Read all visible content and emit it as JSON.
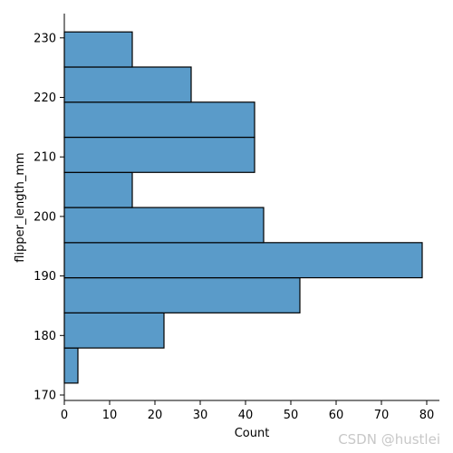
{
  "chart_data": {
    "type": "bar",
    "orientation": "horizontal",
    "xlabel": "Count",
    "ylabel": "flipper_length_mm",
    "xlim": [
      0,
      83
    ],
    "ylim": [
      169.2,
      233.4
    ],
    "x_ticks": [
      0,
      10,
      20,
      30,
      40,
      50,
      60,
      70,
      80
    ],
    "y_ticks": [
      170,
      180,
      190,
      200,
      210,
      220,
      230
    ],
    "bins": [
      {
        "lo": 172.0,
        "hi": 177.9,
        "count": 3
      },
      {
        "lo": 177.9,
        "hi": 183.8,
        "count": 22
      },
      {
        "lo": 183.8,
        "hi": 189.7,
        "count": 52
      },
      {
        "lo": 189.7,
        "hi": 195.6,
        "count": 79
      },
      {
        "lo": 195.6,
        "hi": 201.5,
        "count": 44
      },
      {
        "lo": 201.5,
        "hi": 207.4,
        "count": 15
      },
      {
        "lo": 207.4,
        "hi": 213.3,
        "count": 42
      },
      {
        "lo": 213.3,
        "hi": 219.2,
        "count": 42
      },
      {
        "lo": 219.2,
        "hi": 225.1,
        "count": 28
      },
      {
        "lo": 225.1,
        "hi": 231.0,
        "count": 15
      }
    ],
    "bar_color": "#5a9bc9",
    "edge_color": "#000000",
    "grid": false,
    "spines": "left-bottom"
  },
  "watermark": "CSDN @hustlei"
}
